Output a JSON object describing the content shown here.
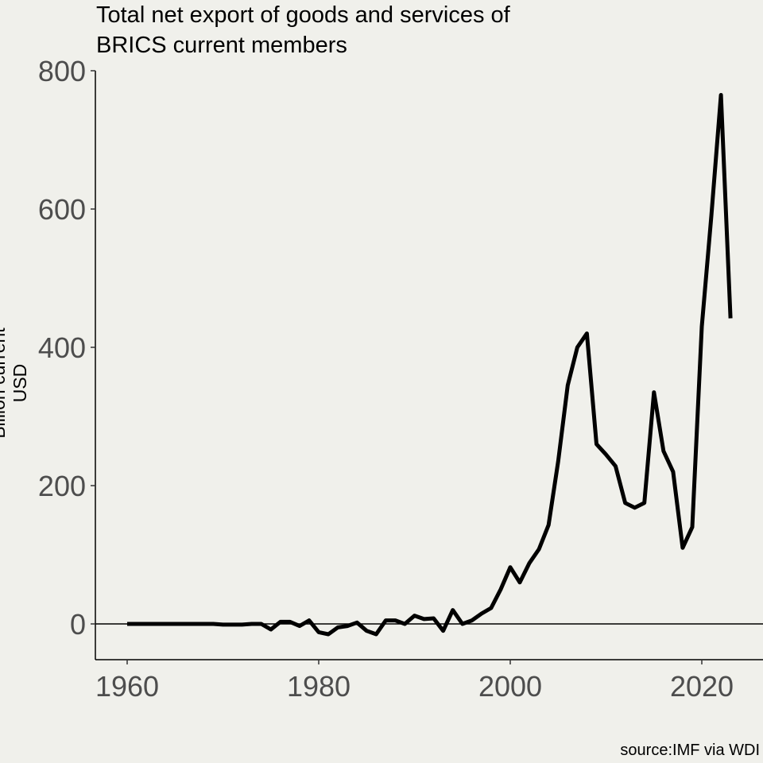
{
  "chart_data": {
    "type": "line",
    "title": "Total net export of goods and services of BRICS current members",
    "title_lines": [
      "Total net export of goods and services of",
      "BRICS current members"
    ],
    "xlabel": "",
    "ylabel": "Billion current USD",
    "caption": "source:IMF via WDI",
    "xlim": [
      1957,
      2026
    ],
    "ylim": [
      -52,
      800
    ],
    "xticks": [
      1960,
      1980,
      2000,
      2020
    ],
    "yticks": [
      0,
      200,
      400,
      600,
      800
    ],
    "grid": false,
    "reference_line": 0,
    "line_color": "#000000",
    "background": "#f0f0eb",
    "x": [
      1960,
      1961,
      1962,
      1963,
      1964,
      1965,
      1966,
      1967,
      1968,
      1969,
      1970,
      1971,
      1972,
      1973,
      1974,
      1975,
      1976,
      1977,
      1978,
      1979,
      1980,
      1981,
      1982,
      1983,
      1984,
      1985,
      1986,
      1987,
      1988,
      1989,
      1990,
      1991,
      1992,
      1993,
      1994,
      1995,
      1996,
      1997,
      1998,
      1999,
      2000,
      2001,
      2002,
      2003,
      2004,
      2005,
      2006,
      2007,
      2008,
      2009,
      2010,
      2011,
      2012,
      2013,
      2014,
      2015,
      2016,
      2017,
      2018,
      2019,
      2020,
      2021,
      2022,
      2023
    ],
    "y": [
      0,
      0,
      0,
      0,
      0,
      0,
      0,
      0,
      0,
      0,
      -1,
      -1,
      -1,
      0,
      0,
      -8,
      3,
      3,
      -3,
      5,
      -12,
      -15,
      -5,
      -3,
      2,
      -10,
      -15,
      5,
      5,
      0,
      12,
      7,
      8,
      -10,
      20,
      0,
      5,
      15,
      23,
      50,
      82,
      60,
      88,
      108,
      143,
      235,
      345,
      400,
      420,
      260,
      245,
      228,
      175,
      168,
      175,
      335,
      250,
      220,
      110,
      140,
      430,
      590,
      765,
      442
    ]
  }
}
